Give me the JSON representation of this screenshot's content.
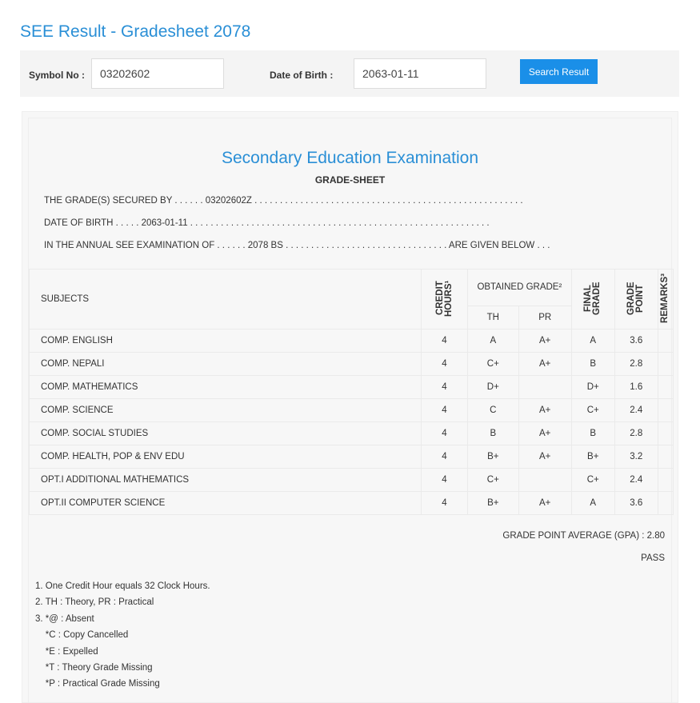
{
  "page_title": "SEE Result - Gradesheet 2078",
  "search": {
    "symbol_label": "Symbol No :",
    "symbol_value": "03202602",
    "dob_label": "Date of Birth :",
    "dob_value": "2063-01-11",
    "button": "Search Result"
  },
  "sheet": {
    "exam": "Secondary Education Examination",
    "heading": "GRADE-SHEET",
    "line1": "THE GRADE(S) SECURED BY . . . . . . 03202602Z . . . . . . . . . . . . . . . . . . . . . . . . . . . . . . . . . . . . . . . . . . . . . . . . . . . . .",
    "line2": "DATE OF BIRTH . . . . . 2063-01-11 . . . . . . . . . . . . . . . . . . . . . . . . . . . . . . . . . . . . . . . . . . . . . . . . . . . . . . . . . . .",
    "line3": "IN THE ANNUAL SEE EXAMINATION OF . . . . . . 2078 BS . . . . . . . . . . . . . . . . . . . . . . . . . . . . . . . . ARE GIVEN BELOW . . .",
    "headers": {
      "subjects": "SUBJECTS",
      "credit": "CREDIT HOURS¹",
      "obtained": "OBTAINED GRADE²",
      "th": "TH",
      "pr": "PR",
      "final": "FINAL GRADE",
      "gp": "GRADE POINT",
      "remarks": "REMARKS³"
    },
    "rows": [
      [
        "COMP. ENGLISH",
        "4",
        "A",
        "A+",
        "A",
        "3.6",
        ""
      ],
      [
        "COMP. NEPALI",
        "4",
        "C+",
        "A+",
        "B",
        "2.8",
        ""
      ],
      [
        "COMP. MATHEMATICS",
        "4",
        "D+",
        "",
        "D+",
        "1.6",
        ""
      ],
      [
        "COMP. SCIENCE",
        "4",
        "C",
        "A+",
        "C+",
        "2.4",
        ""
      ],
      [
        "COMP. SOCIAL STUDIES",
        "4",
        "B",
        "A+",
        "B",
        "2.8",
        ""
      ],
      [
        "COMP. HEALTH, POP & ENV EDU",
        "4",
        "B+",
        "A+",
        "B+",
        "3.2",
        ""
      ],
      [
        "OPT.I ADDITIONAL MATHEMATICS",
        "4",
        "C+",
        "",
        "C+",
        "2.4",
        ""
      ],
      [
        "OPT.II COMPUTER SCIENCE",
        "4",
        "B+",
        "A+",
        "A",
        "3.6",
        ""
      ]
    ],
    "gpa": "GRADE POINT AVERAGE (GPA) : 2.80",
    "result": "PASS",
    "notes": [
      "1. One Credit Hour equals 32 Clock Hours.",
      "2. TH : Theory, PR : Practical",
      "3. *@ : Absent",
      "    *C : Copy Cancelled",
      "    *E : Expelled",
      "    *T : Theory Grade Missing",
      "    *P : Practical Grade Missing"
    ]
  }
}
